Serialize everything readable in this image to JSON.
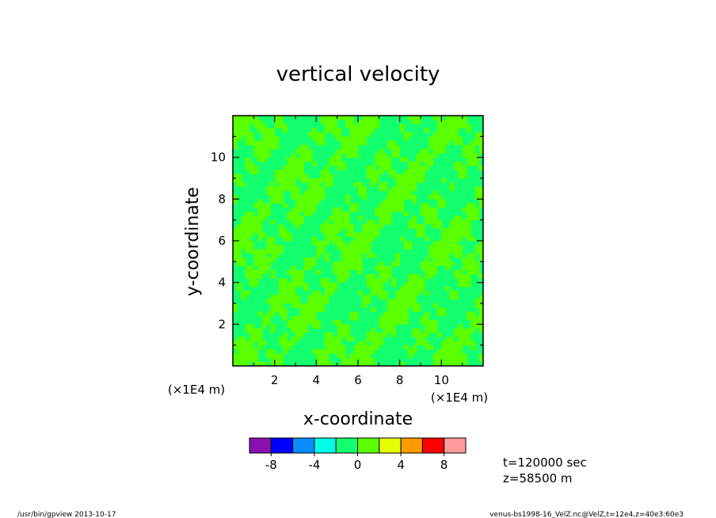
{
  "chart_data": {
    "type": "heatmap",
    "title": "vertical velocity",
    "xlabel": "x-coordinate",
    "ylabel": "y-coordinate",
    "x_unit": "(×1E4 m)",
    "y_unit": "(×1E4 m)",
    "xlim": [
      0,
      12
    ],
    "ylim": [
      0,
      12
    ],
    "x_ticks": [
      "2",
      "4",
      "6",
      "8",
      "10"
    ],
    "y_ticks": [
      "2",
      "4",
      "6",
      "8",
      "10"
    ],
    "x_tick_values": [
      2,
      4,
      6,
      8,
      10
    ],
    "y_tick_values": [
      2,
      4,
      6,
      8,
      10
    ],
    "field_levels": [
      "0 to 2",
      "-2 to 0"
    ],
    "colorbar": {
      "colors": [
        "#8a0fb0",
        "#0000ff",
        "#0a8cff",
        "#00ffe6",
        "#14ff6e",
        "#5aff00",
        "#e6ff00",
        "#ff9a00",
        "#ff0000",
        "#ff9a9a"
      ],
      "bounds": [
        -10,
        -8,
        -6,
        -4,
        -2,
        0,
        2,
        4,
        6,
        8,
        10
      ],
      "tick_labels": [
        "-8",
        "-4",
        "0",
        "4",
        "8"
      ],
      "tick_values": [
        -8,
        -4,
        0,
        4,
        8
      ]
    },
    "info": {
      "time": "t=120000 sec",
      "height": "z=58500 m"
    },
    "footer_left": "/usr/bin/gpview 2013-10-17",
    "footer_right": "venus-bs1998-16_VelZ.nc@VelZ,t=12e4,z=40e3:60e3"
  }
}
